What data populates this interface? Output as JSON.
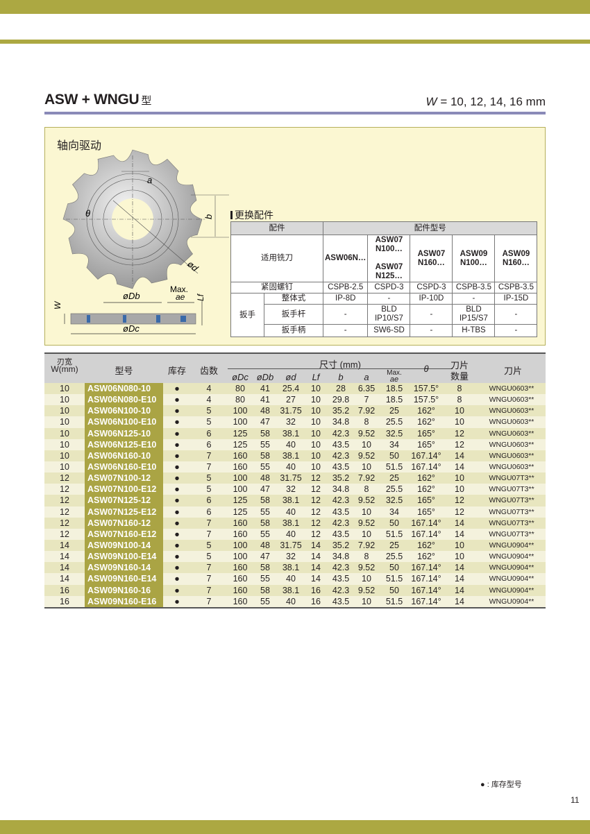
{
  "header": {
    "title": "ASW +  WNGU",
    "title_suffix": "型",
    "w_symbol": "W",
    "w_values": " = 10, 12, 14, 16 mm"
  },
  "colors": {
    "brand_bar": "#aca842",
    "title_line": "#8a8ab8",
    "model_cell": "#aaa444",
    "row_dark": "#e8e6bf",
    "row_light": "#f4f2dd",
    "panel_bg": "#fbf7d2"
  },
  "diagram": {
    "label": "轴向驱动",
    "dims": {
      "a": "a",
      "b": "b",
      "theta": "θ",
      "d": "ød",
      "Db": "øDb",
      "Dc": "øDc",
      "W": "W",
      "Lf": "Lf",
      "max": "Max.",
      "ae": "ae"
    }
  },
  "accessories": {
    "title": "更换配件",
    "col_part": "配件",
    "col_model": "配件型号",
    "applicable_label": "适用铣刀",
    "applicable": [
      "ASW06N…",
      "ASW07\nN100…\n\nASW07\nN125…",
      "ASW07\nN160…",
      "ASW09\nN100…",
      "ASW09\nN160…"
    ],
    "screw_label": "紧固螺钉",
    "screw": [
      "CSPB-2.5",
      "CSPD-3",
      "CSPD-3",
      "CSPB-3.5",
      "CSPB-3.5"
    ],
    "wrench_label": "扳手",
    "wrench_rows": [
      {
        "label": "整体式",
        "values": [
          "IP-8D",
          "-",
          "IP-10D",
          "-",
          "IP-15D"
        ]
      },
      {
        "label": "扳手杆",
        "values": [
          "-",
          "BLD\nIP10/S7",
          "-",
          "BLD\nIP15/S7",
          "-"
        ]
      },
      {
        "label": "扳手柄",
        "values": [
          "-",
          "SW6-SD",
          "-",
          "H-TBS",
          "-"
        ]
      }
    ]
  },
  "table": {
    "headers": {
      "w_line1": "刃宽",
      "w_line2": "W(mm)",
      "model": "型号",
      "stock": "库存",
      "teeth": "齿数",
      "dims": "尺寸 (mm)",
      "Dc": "øDc",
      "Db": "øDb",
      "d": "ød",
      "Lf": "Lf",
      "b": "b",
      "a": "a",
      "ae_max": "Max.",
      "ae": "ae",
      "theta": "θ",
      "count_line1": "刀片",
      "count_line2": "数量",
      "insert": "刀片"
    },
    "rows": [
      [
        "10",
        "ASW06N080-10",
        "●",
        "4",
        "80",
        "41",
        "25.4",
        "10",
        "28",
        "6.35",
        "18.5",
        "157.5°",
        "8",
        "WNGU0603**"
      ],
      [
        "10",
        "ASW06N080-E10",
        "●",
        "4",
        "80",
        "41",
        "27",
        "10",
        "29.8",
        "7",
        "18.5",
        "157.5°",
        "8",
        "WNGU0603**"
      ],
      [
        "10",
        "ASW06N100-10",
        "●",
        "5",
        "100",
        "48",
        "31.75",
        "10",
        "35.2",
        "7.92",
        "25",
        "162°",
        "10",
        "WNGU0603**"
      ],
      [
        "10",
        "ASW06N100-E10",
        "●",
        "5",
        "100",
        "47",
        "32",
        "10",
        "34.8",
        "8",
        "25.5",
        "162°",
        "10",
        "WNGU0603**"
      ],
      [
        "10",
        "ASW06N125-10",
        "●",
        "6",
        "125",
        "58",
        "38.1",
        "10",
        "42.3",
        "9.52",
        "32.5",
        "165°",
        "12",
        "WNGU0603**"
      ],
      [
        "10",
        "ASW06N125-E10",
        "●",
        "6",
        "125",
        "55",
        "40",
        "10",
        "43.5",
        "10",
        "34",
        "165°",
        "12",
        "WNGU0603**"
      ],
      [
        "10",
        "ASW06N160-10",
        "●",
        "7",
        "160",
        "58",
        "38.1",
        "10",
        "42.3",
        "9.52",
        "50",
        "167.14°",
        "14",
        "WNGU0603**"
      ],
      [
        "10",
        "ASW06N160-E10",
        "●",
        "7",
        "160",
        "55",
        "40",
        "10",
        "43.5",
        "10",
        "51.5",
        "167.14°",
        "14",
        "WNGU0603**"
      ],
      [
        "12",
        "ASW07N100-12",
        "●",
        "5",
        "100",
        "48",
        "31.75",
        "12",
        "35.2",
        "7.92",
        "25",
        "162°",
        "10",
        "WNGU07T3**"
      ],
      [
        "12",
        "ASW07N100-E12",
        "●",
        "5",
        "100",
        "47",
        "32",
        "12",
        "34.8",
        "8",
        "25.5",
        "162°",
        "10",
        "WNGU07T3**"
      ],
      [
        "12",
        "ASW07N125-12",
        "●",
        "6",
        "125",
        "58",
        "38.1",
        "12",
        "42.3",
        "9.52",
        "32.5",
        "165°",
        "12",
        "WNGU07T3**"
      ],
      [
        "12",
        "ASW07N125-E12",
        "●",
        "6",
        "125",
        "55",
        "40",
        "12",
        "43.5",
        "10",
        "34",
        "165°",
        "12",
        "WNGU07T3**"
      ],
      [
        "12",
        "ASW07N160-12",
        "●",
        "7",
        "160",
        "58",
        "38.1",
        "12",
        "42.3",
        "9.52",
        "50",
        "167.14°",
        "14",
        "WNGU07T3**"
      ],
      [
        "12",
        "ASW07N160-E12",
        "●",
        "7",
        "160",
        "55",
        "40",
        "12",
        "43.5",
        "10",
        "51.5",
        "167.14°",
        "14",
        "WNGU07T3**"
      ],
      [
        "14",
        "ASW09N100-14",
        "●",
        "5",
        "100",
        "48",
        "31.75",
        "14",
        "35.2",
        "7.92",
        "25",
        "162°",
        "10",
        "WNGU0904**"
      ],
      [
        "14",
        "ASW09N100-E14",
        "●",
        "5",
        "100",
        "47",
        "32",
        "14",
        "34.8",
        "8",
        "25.5",
        "162°",
        "10",
        "WNGU0904**"
      ],
      [
        "14",
        "ASW09N160-14",
        "●",
        "7",
        "160",
        "58",
        "38.1",
        "14",
        "42.3",
        "9.52",
        "50",
        "167.14°",
        "14",
        "WNGU0904**"
      ],
      [
        "14",
        "ASW09N160-E14",
        "●",
        "7",
        "160",
        "55",
        "40",
        "14",
        "43.5",
        "10",
        "51.5",
        "167.14°",
        "14",
        "WNGU0904**"
      ],
      [
        "16",
        "ASW09N160-16",
        "●",
        "7",
        "160",
        "58",
        "38.1",
        "16",
        "42.3",
        "9.52",
        "50",
        "167.14°",
        "14",
        "WNGU0904**"
      ],
      [
        "16",
        "ASW09N160-E16",
        "●",
        "7",
        "160",
        "55",
        "40",
        "16",
        "43.5",
        "10",
        "51.5",
        "167.14°",
        "14",
        "WNGU0904**"
      ]
    ]
  },
  "footer": {
    "legend": "● : 库存型号",
    "page_number": "11"
  }
}
